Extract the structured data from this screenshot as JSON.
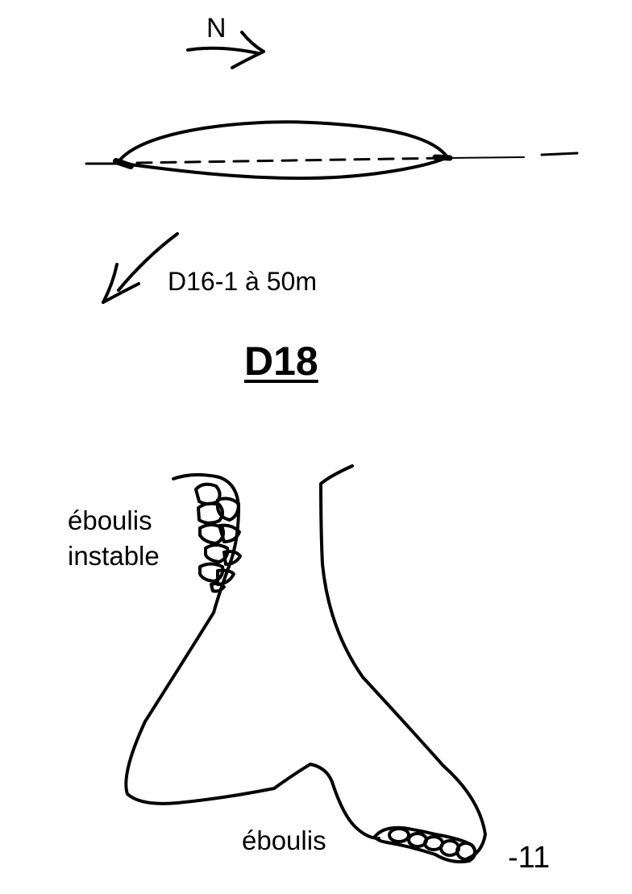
{
  "drawing": {
    "north": "N",
    "reference": "D16-1 à 50m",
    "title": "D18",
    "labels": {
      "scree_unstable_line1": "éboulis",
      "scree_unstable_line2": "instable",
      "scree_bottom": "éboulis",
      "depth": "-11"
    },
    "icons": [
      "north-arrow-icon",
      "direction-arrow-icon",
      "rock-icon"
    ],
    "colors": {
      "ink": "#000000",
      "paper": "#ffffff"
    }
  }
}
